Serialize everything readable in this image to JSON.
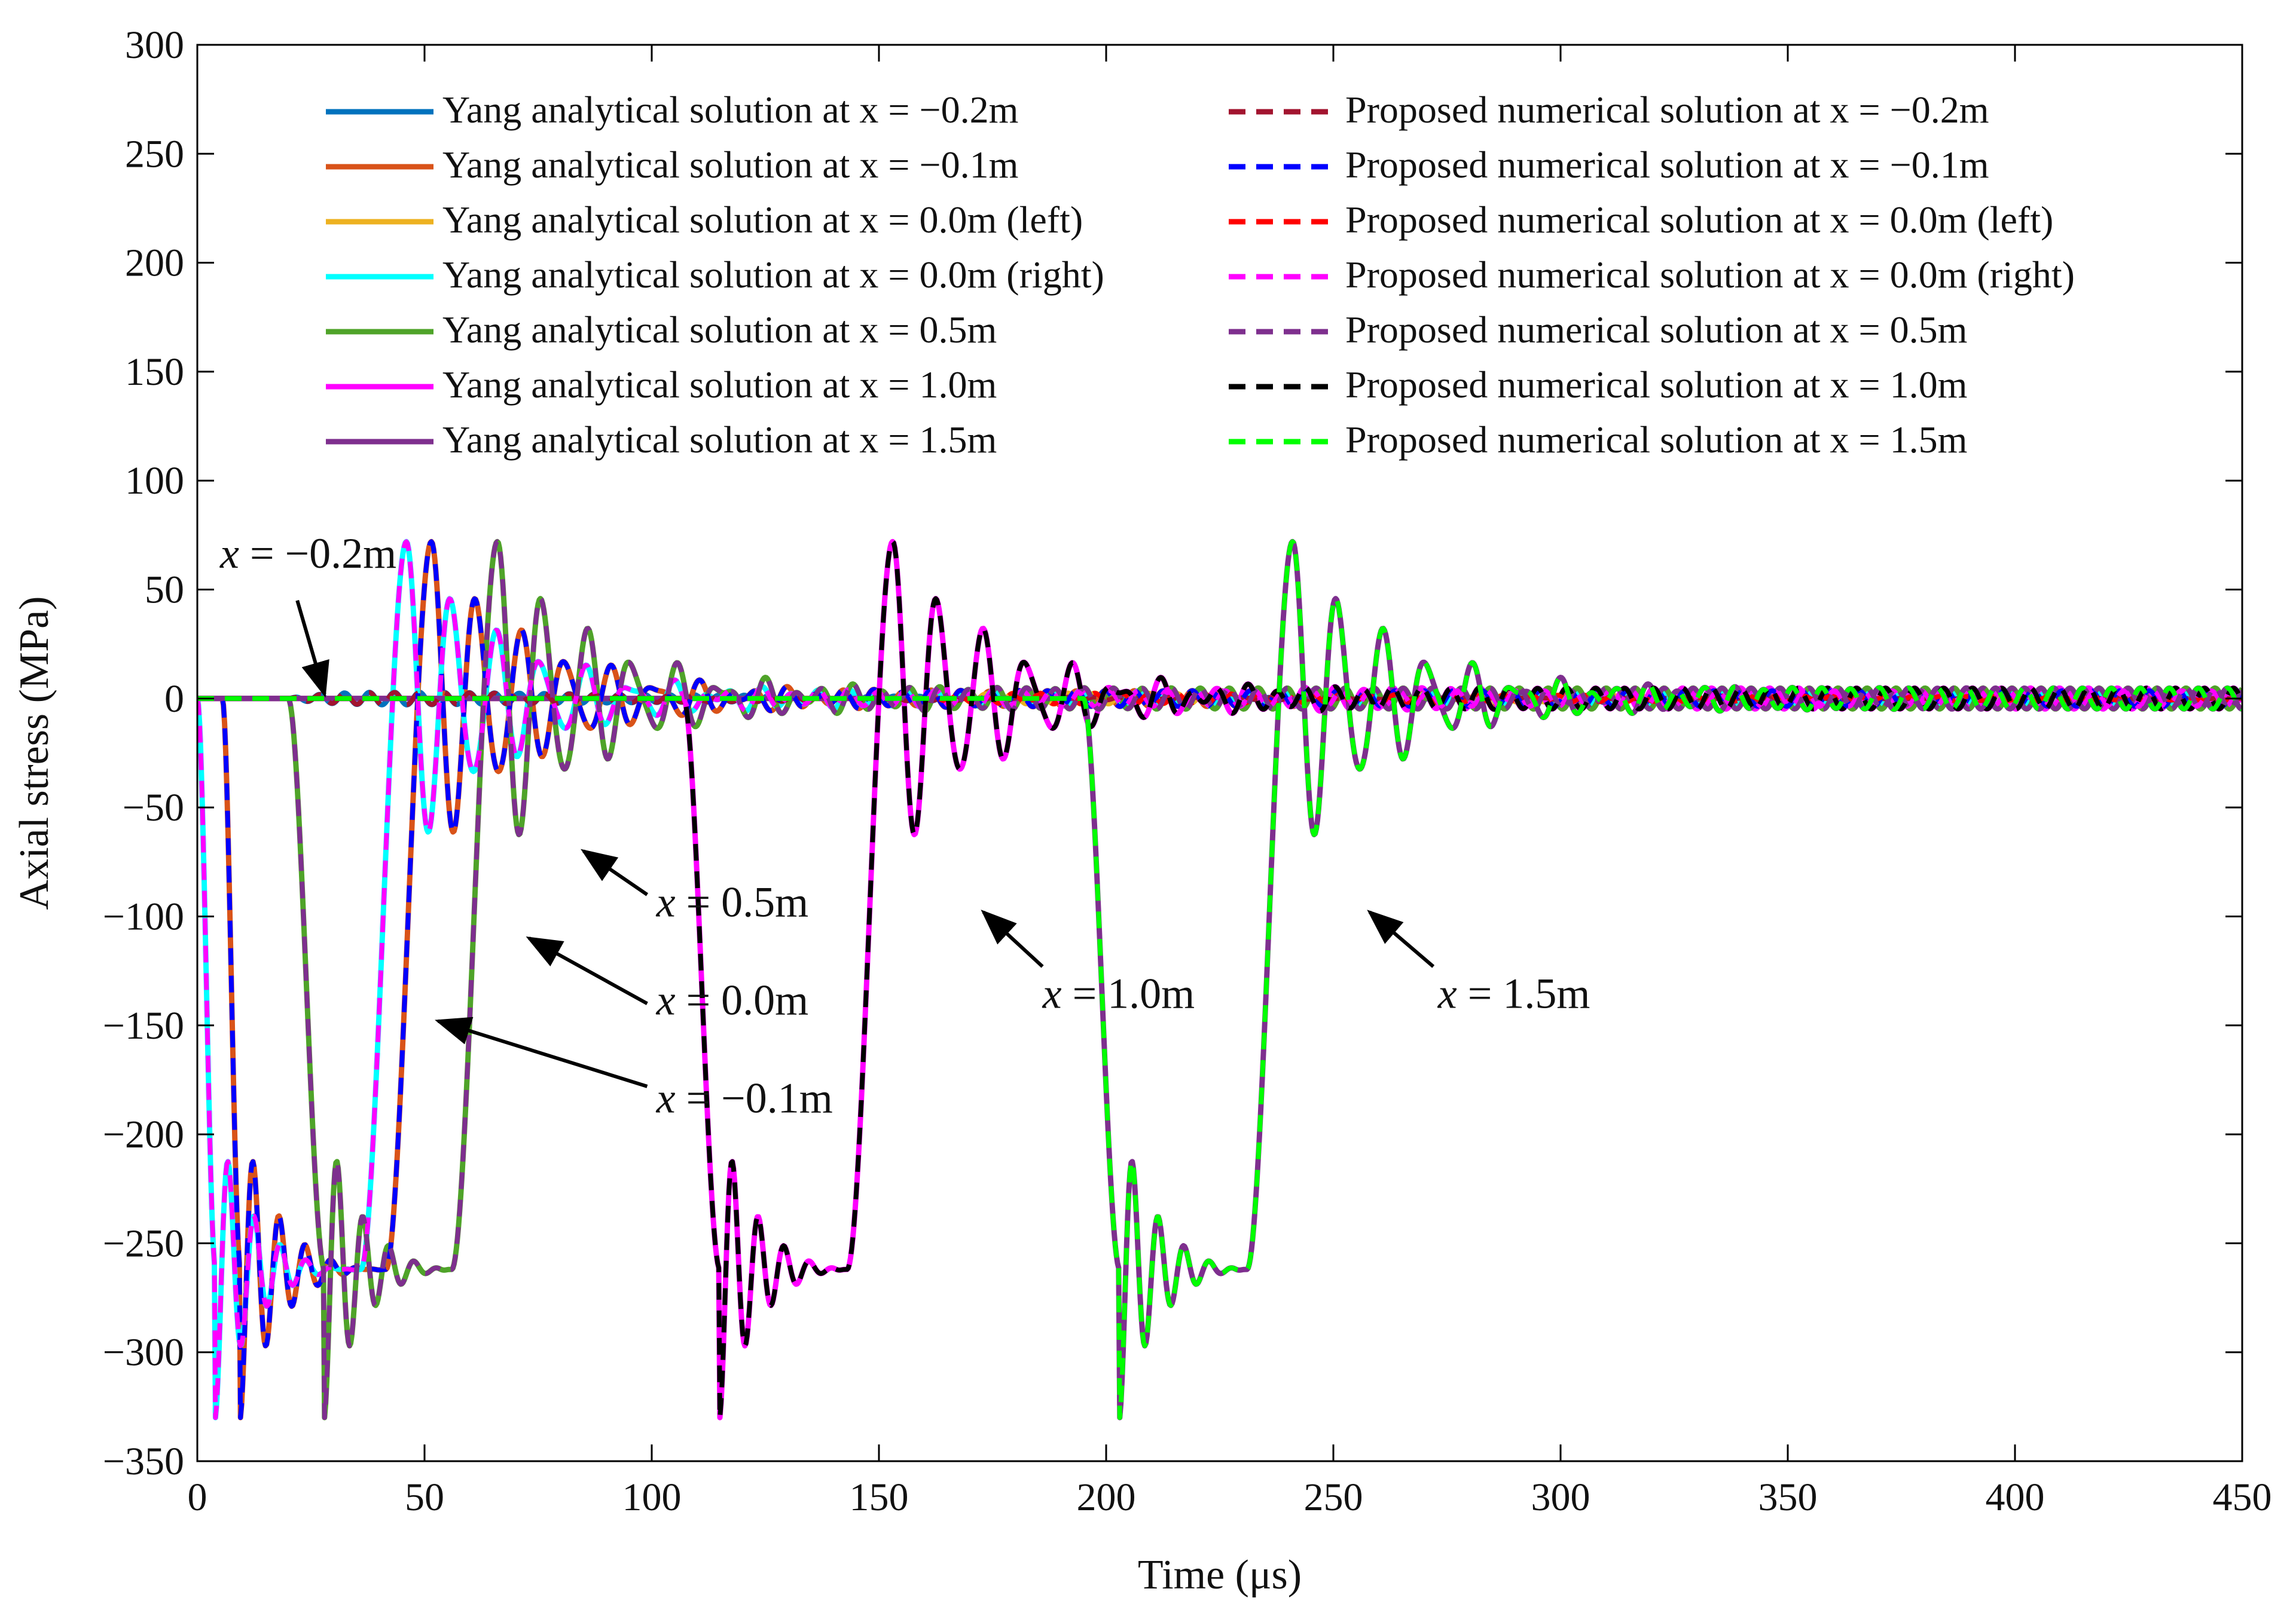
{
  "chart_data": {
    "type": "line",
    "title": "",
    "xlabel": "Time (μs)",
    "ylabel": "Axial stress (MPa)",
    "xlim": [
      0,
      450
    ],
    "ylim": [
      -350,
      300
    ],
    "xticks": [
      0,
      50,
      100,
      150,
      200,
      250,
      300,
      350,
      400,
      450
    ],
    "yticks": [
      300,
      250,
      200,
      150,
      100,
      50,
      0,
      -50,
      -100,
      -150,
      -200,
      -250,
      -300,
      -350
    ],
    "xtick_labels": [
      "0",
      "50",
      "100",
      "150",
      "200",
      "250",
      "300",
      "350",
      "400",
      "450"
    ],
    "ytick_labels": [
      "300",
      "250",
      "200",
      "150",
      "100",
      "50",
      "0",
      "−50",
      "−100",
      "−150",
      "−200",
      "−250",
      "−300",
      "−350"
    ],
    "grid": false,
    "legend_position": "top",
    "series": [
      {
        "name": "Yang analytical solution at x = −0.2m",
        "style": "solid",
        "color": "#0072BD",
        "wave": {
          "kind": "ripple",
          "start": 20,
          "amp": 4,
          "period": 5.5,
          "decay": 0.01
        }
      },
      {
        "name": "Yang analytical solution at x = −0.1m",
        "style": "solid",
        "color": "#D95319",
        "wave": {
          "kind": "pulse",
          "d": 5.5,
          "amp": 6,
          "period": 5.8
        }
      },
      {
        "name": "Yang analytical solution at x = 0.0m (left)",
        "style": "solid",
        "color": "#EDB120",
        "wave": {
          "kind": "ripple",
          "start": 160,
          "amp": 3,
          "period": 6,
          "decay": 0.005
        }
      },
      {
        "name": "Yang analytical solution at x = 0.0m (right)",
        "style": "solid",
        "color": "#00FFFF",
        "wave": {
          "kind": "pulse",
          "d": 0,
          "amp": 6,
          "period": 5.8
        }
      },
      {
        "name": "Yang analytical solution at x = 0.5m",
        "style": "solid",
        "color": "#4FA329",
        "wave": {
          "kind": "pulse",
          "d": 20,
          "amp": 8,
          "period": 5.8
        }
      },
      {
        "name": "Yang analytical solution at x = 1.0m",
        "style": "solid",
        "color": "#FF00FF",
        "wave": {
          "kind": "pulse",
          "d": 107,
          "amp": 8,
          "period": 5.8
        }
      },
      {
        "name": "Yang analytical solution at x = 1.5m",
        "style": "solid",
        "color": "#7E2F8E",
        "wave": {
          "kind": "pulse",
          "d": 195,
          "amp": 8,
          "period": 5.8
        }
      },
      {
        "name": "Proposed numerical solution at x = −0.2m",
        "style": "dashed",
        "color": "#A2142F",
        "wave": {
          "kind": "ripple",
          "start": 20,
          "amp": 4,
          "period": 5.5,
          "decay": 0.01
        }
      },
      {
        "name": "Proposed numerical solution at x = −0.1m",
        "style": "dashed",
        "color": "#0000FF",
        "wave": {
          "kind": "pulse",
          "d": 5.5,
          "amp": 6,
          "period": 5.8
        }
      },
      {
        "name": "Proposed numerical solution at x = 0.0m (left)",
        "style": "dashed",
        "color": "#FF0000",
        "wave": {
          "kind": "ripple",
          "start": 160,
          "amp": 3,
          "period": 6,
          "decay": 0.005
        }
      },
      {
        "name": "Proposed numerical solution at x = 0.0m (right)",
        "style": "dashed",
        "color": "#FF00FF",
        "wave": {
          "kind": "pulse",
          "d": 0,
          "amp": 6,
          "period": 5.8
        }
      },
      {
        "name": "Proposed numerical solution at x = 0.5m",
        "style": "dashed",
        "color": "#7E2F8E",
        "wave": {
          "kind": "pulse",
          "d": 20,
          "amp": 8,
          "period": 5.8
        }
      },
      {
        "name": "Proposed numerical solution at x = 1.0m",
        "style": "dashed",
        "color": "#000000",
        "wave": {
          "kind": "pulse",
          "d": 107,
          "amp": 8,
          "period": 5.8
        }
      },
      {
        "name": "Proposed numerical solution at x = 1.5m",
        "style": "dashed",
        "color": "#00FF00",
        "wave": {
          "kind": "pulse",
          "d": 195,
          "amp": 8,
          "period": 5.8
        }
      }
    ],
    "pulse_profile": {
      "plateau_stress": -262,
      "peak_tension": 72,
      "minimum_stress": -330,
      "pulse_duration": 36
    },
    "annotations": [
      {
        "label_prefix": "x",
        "label_value": " = −0.2m",
        "text_at": [
          5,
          60
        ],
        "arrow_from": [
          22,
          45
        ],
        "arrow_to": [
          28,
          2
        ]
      },
      {
        "label_prefix": "x",
        "label_value": " = 0.5m",
        "text_at": [
          101,
          -100
        ],
        "arrow_from": [
          99,
          -90
        ],
        "arrow_to": [
          85,
          -70
        ]
      },
      {
        "label_prefix": "x",
        "label_value": " = 0.0m",
        "text_at": [
          101,
          -145
        ],
        "arrow_from": [
          99,
          -140
        ],
        "arrow_to": [
          73,
          -110
        ]
      },
      {
        "label_prefix": "x",
        "label_value": " = −0.1m",
        "text_at": [
          101,
          -190
        ],
        "arrow_from": [
          99,
          -178
        ],
        "arrow_to": [
          53,
          -148
        ]
      },
      {
        "label_prefix": "x",
        "label_value": " = 1.0m",
        "text_at": [
          186,
          -142
        ],
        "arrow_from": [
          186,
          -123
        ],
        "arrow_to": [
          173,
          -98
        ]
      },
      {
        "label_prefix": "x",
        "label_value": " = 1.5m",
        "text_at": [
          273,
          -142
        ],
        "arrow_from": [
          272,
          -123
        ],
        "arrow_to": [
          258,
          -98
        ]
      }
    ]
  }
}
